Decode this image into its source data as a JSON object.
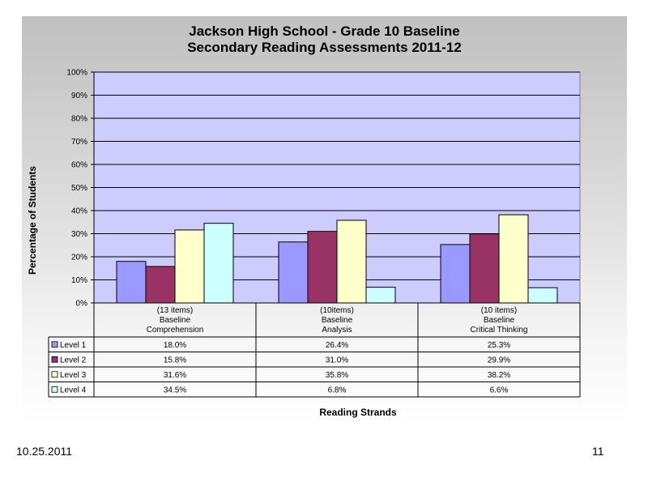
{
  "chart_data": {
    "type": "bar",
    "title": [
      "Jackson High School - Grade 10 Baseline",
      "Secondary Reading Assessments 2011-12"
    ],
    "ylabel": "Percentage of Students",
    "xlabel": "Reading Strands",
    "ylim": [
      0,
      100
    ],
    "yticks": [
      "0%",
      "10%",
      "20%",
      "30%",
      "40%",
      "50%",
      "60%",
      "70%",
      "80%",
      "90%",
      "100%"
    ],
    "grid": true,
    "legend": "data-table",
    "categories": [
      [
        "(13 items)",
        "Baseline",
        "Comprehension"
      ],
      [
        "(10items)",
        "Baseline",
        "Analysis"
      ],
      [
        "(10 items)",
        "Baseline",
        "Critical Thinking"
      ]
    ],
    "series": [
      {
        "name": "Level 1",
        "color": "#9999ff",
        "values": [
          18.0,
          26.4,
          25.3
        ],
        "labels": [
          "18.0%",
          "26.4%",
          "25.3%"
        ]
      },
      {
        "name": "Level 2",
        "color": "#993366",
        "values": [
          15.8,
          31.0,
          29.9
        ],
        "labels": [
          "15.8%",
          "31.0%",
          "29.9%"
        ]
      },
      {
        "name": "Level 3",
        "color": "#ffffcc",
        "values": [
          31.6,
          35.8,
          38.2
        ],
        "labels": [
          "31.6%",
          "35.8%",
          "38.2%"
        ]
      },
      {
        "name": "Level 4",
        "color": "#ccffff",
        "values": [
          34.5,
          6.8,
          6.6
        ],
        "labels": [
          "34.5%",
          "6.8%",
          "6.6%"
        ]
      }
    ],
    "plot_background": "#ccccff"
  },
  "footer": {
    "date": "10.25.2011",
    "page": "11"
  }
}
